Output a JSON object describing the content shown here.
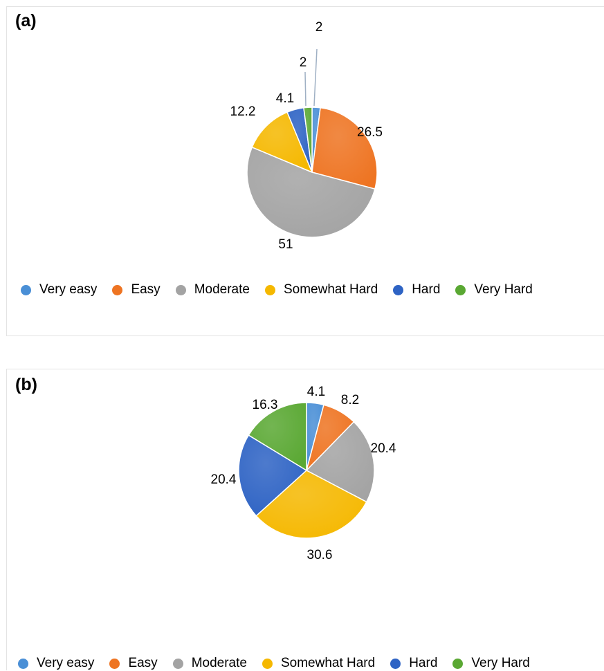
{
  "colors": {
    "very_easy": "#4a8fd6",
    "easy": "#ee7422",
    "moderate": "#a3a3a3",
    "somewhat_hard": "#f5b800",
    "hard": "#2e63c4",
    "very_hard": "#5aa833"
  },
  "chart_data": [
    {
      "type": "pie",
      "panel_label": "(a)",
      "categories": [
        "Very easy",
        "Easy",
        "Moderate",
        "Somewhat Hard",
        "Hard",
        "Very Hard"
      ],
      "values": [
        2,
        26.5,
        51,
        12.2,
        4.1,
        2
      ],
      "data_labels": [
        "2",
        "26.5",
        "51",
        "12.2",
        "4.1",
        "2"
      ],
      "legend": "bottom"
    },
    {
      "type": "pie",
      "panel_label": "(b)",
      "categories": [
        "Very easy",
        "Easy",
        "Moderate",
        "Somewhat Hard",
        "Hard",
        "Very Hard"
      ],
      "values": [
        4.1,
        8.2,
        20.4,
        30.6,
        20.4,
        16.3
      ],
      "data_labels": [
        "4.1",
        "8.2",
        "20.4",
        "30.6",
        "20.4",
        "16.3"
      ],
      "legend": "bottom"
    }
  ]
}
